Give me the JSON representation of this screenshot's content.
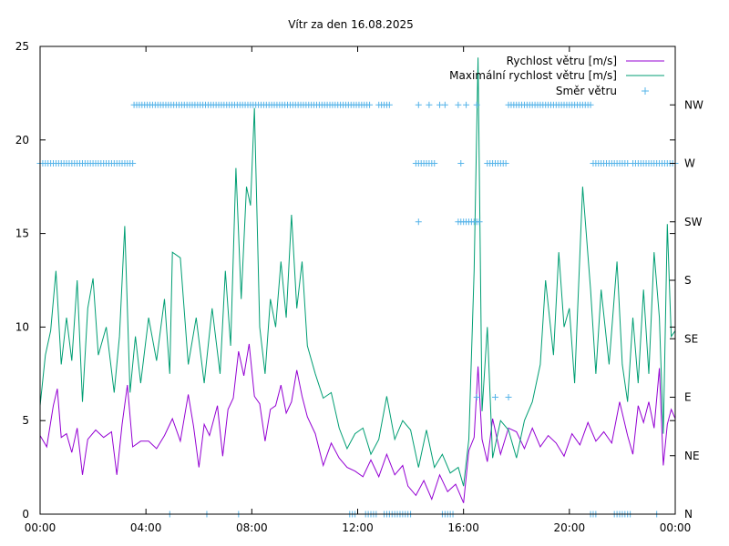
{
  "chart_data": {
    "type": "line",
    "title": "Vítr za den 16.08.2025",
    "x_ticks": [
      "00:00",
      "04:00",
      "08:00",
      "12:00",
      "16:00",
      "20:00",
      "00:00"
    ],
    "x_range_hours": [
      0,
      24
    ],
    "y_left": {
      "range": [
        0,
        25
      ],
      "ticks": [
        "0",
        "5",
        "10",
        "15",
        "20",
        "25"
      ]
    },
    "y_right": {
      "ticks": [
        "N",
        "NE",
        "E",
        "SE",
        "S",
        "SW",
        "W",
        "NW"
      ]
    },
    "grid": false,
    "legend_position": "top-right",
    "series": [
      {
        "name": "Rychlost větru [m/s]",
        "color": "#9400d3",
        "kind": "line",
        "points": [
          [
            0,
            4.2
          ],
          [
            0.25,
            3.6
          ],
          [
            0.5,
            5.8
          ],
          [
            0.65,
            6.7
          ],
          [
            0.8,
            4.1
          ],
          [
            1,
            4.3
          ],
          [
            1.2,
            3.3
          ],
          [
            1.4,
            4.6
          ],
          [
            1.6,
            2.1
          ],
          [
            1.8,
            4.0
          ],
          [
            2.1,
            4.5
          ],
          [
            2.4,
            4.1
          ],
          [
            2.7,
            4.4
          ],
          [
            2.9,
            2.1
          ],
          [
            3.1,
            4.8
          ],
          [
            3.3,
            6.9
          ],
          [
            3.5,
            3.6
          ],
          [
            3.8,
            3.9
          ],
          [
            4.1,
            3.9
          ],
          [
            4.4,
            3.5
          ],
          [
            4.7,
            4.2
          ],
          [
            5.0,
            5.1
          ],
          [
            5.3,
            3.9
          ],
          [
            5.6,
            6.4
          ],
          [
            5.8,
            4.7
          ],
          [
            6.0,
            2.5
          ],
          [
            6.2,
            4.8
          ],
          [
            6.4,
            4.2
          ],
          [
            6.7,
            5.8
          ],
          [
            6.9,
            3.1
          ],
          [
            7.1,
            5.6
          ],
          [
            7.3,
            6.2
          ],
          [
            7.5,
            8.7
          ],
          [
            7.7,
            7.4
          ],
          [
            7.9,
            9.1
          ],
          [
            8.1,
            6.3
          ],
          [
            8.3,
            5.9
          ],
          [
            8.5,
            3.9
          ],
          [
            8.7,
            5.6
          ],
          [
            8.9,
            5.8
          ],
          [
            9.1,
            6.9
          ],
          [
            9.3,
            5.4
          ],
          [
            9.5,
            6.0
          ],
          [
            9.7,
            7.7
          ],
          [
            9.9,
            6.3
          ],
          [
            10.1,
            5.2
          ],
          [
            10.4,
            4.3
          ],
          [
            10.7,
            2.6
          ],
          [
            11.0,
            3.8
          ],
          [
            11.3,
            3.0
          ],
          [
            11.6,
            2.5
          ],
          [
            11.9,
            2.3
          ],
          [
            12.2,
            2.0
          ],
          [
            12.5,
            2.9
          ],
          [
            12.8,
            2.0
          ],
          [
            13.1,
            3.2
          ],
          [
            13.4,
            2.1
          ],
          [
            13.7,
            2.6
          ],
          [
            13.9,
            1.5
          ],
          [
            14.2,
            1.0
          ],
          [
            14.5,
            1.8
          ],
          [
            14.8,
            0.8
          ],
          [
            15.1,
            2.1
          ],
          [
            15.4,
            1.2
          ],
          [
            15.7,
            1.6
          ],
          [
            16.0,
            0.6
          ],
          [
            16.2,
            3.4
          ],
          [
            16.4,
            4.1
          ],
          [
            16.55,
            7.9
          ],
          [
            16.7,
            4.0
          ],
          [
            16.9,
            2.8
          ],
          [
            17.1,
            5.1
          ],
          [
            17.4,
            3.2
          ],
          [
            17.7,
            4.6
          ],
          [
            18.0,
            4.4
          ],
          [
            18.3,
            3.5
          ],
          [
            18.6,
            4.6
          ],
          [
            18.9,
            3.6
          ],
          [
            19.2,
            4.2
          ],
          [
            19.5,
            3.8
          ],
          [
            19.8,
            3.1
          ],
          [
            20.1,
            4.3
          ],
          [
            20.4,
            3.7
          ],
          [
            20.7,
            4.9
          ],
          [
            21.0,
            3.9
          ],
          [
            21.3,
            4.4
          ],
          [
            21.6,
            3.8
          ],
          [
            21.9,
            6.0
          ],
          [
            22.2,
            4.2
          ],
          [
            22.4,
            3.2
          ],
          [
            22.6,
            5.8
          ],
          [
            22.8,
            4.9
          ],
          [
            23.0,
            6.0
          ],
          [
            23.2,
            4.6
          ],
          [
            23.4,
            7.8
          ],
          [
            23.55,
            2.6
          ],
          [
            23.7,
            4.8
          ],
          [
            23.85,
            5.6
          ],
          [
            24.0,
            5.1
          ]
        ]
      },
      {
        "name": "Maximální rychlost větru [m/s]",
        "color": "#009e73",
        "kind": "line",
        "points": [
          [
            0,
            5.8
          ],
          [
            0.2,
            8.5
          ],
          [
            0.4,
            9.8
          ],
          [
            0.6,
            13.0
          ],
          [
            0.8,
            8.0
          ],
          [
            1.0,
            10.5
          ],
          [
            1.2,
            8.2
          ],
          [
            1.4,
            12.5
          ],
          [
            1.6,
            6.0
          ],
          [
            1.8,
            11.0
          ],
          [
            2.0,
            12.6
          ],
          [
            2.2,
            8.5
          ],
          [
            2.5,
            10.0
          ],
          [
            2.8,
            6.5
          ],
          [
            3.0,
            9.5
          ],
          [
            3.2,
            15.4
          ],
          [
            3.4,
            6.5
          ],
          [
            3.6,
            9.5
          ],
          [
            3.8,
            7.0
          ],
          [
            4.1,
            10.5
          ],
          [
            4.4,
            8.2
          ],
          [
            4.7,
            11.5
          ],
          [
            4.9,
            7.5
          ],
          [
            5.0,
            14.0
          ],
          [
            5.3,
            13.7
          ],
          [
            5.6,
            8.0
          ],
          [
            5.9,
            10.5
          ],
          [
            6.2,
            7.0
          ],
          [
            6.5,
            11.0
          ],
          [
            6.8,
            7.5
          ],
          [
            7.0,
            13.0
          ],
          [
            7.2,
            9.0
          ],
          [
            7.4,
            18.5
          ],
          [
            7.6,
            11.5
          ],
          [
            7.8,
            17.5
          ],
          [
            7.95,
            16.5
          ],
          [
            8.1,
            21.7
          ],
          [
            8.3,
            10.0
          ],
          [
            8.5,
            7.5
          ],
          [
            8.7,
            11.5
          ],
          [
            8.9,
            10.0
          ],
          [
            9.1,
            13.5
          ],
          [
            9.3,
            10.5
          ],
          [
            9.5,
            16.0
          ],
          [
            9.7,
            11.0
          ],
          [
            9.9,
            13.5
          ],
          [
            10.1,
            9.0
          ],
          [
            10.4,
            7.5
          ],
          [
            10.7,
            6.2
          ],
          [
            11.0,
            6.5
          ],
          [
            11.3,
            4.6
          ],
          [
            11.6,
            3.5
          ],
          [
            11.9,
            4.3
          ],
          [
            12.2,
            4.6
          ],
          [
            12.5,
            3.2
          ],
          [
            12.8,
            4.0
          ],
          [
            13.1,
            6.3
          ],
          [
            13.4,
            4.0
          ],
          [
            13.7,
            5.0
          ],
          [
            14.0,
            4.5
          ],
          [
            14.3,
            2.5
          ],
          [
            14.6,
            4.5
          ],
          [
            14.9,
            2.5
          ],
          [
            15.2,
            3.2
          ],
          [
            15.5,
            2.2
          ],
          [
            15.8,
            2.5
          ],
          [
            16.0,
            1.5
          ],
          [
            16.2,
            4.0
          ],
          [
            16.4,
            13.0
          ],
          [
            16.55,
            24.4
          ],
          [
            16.7,
            5.5
          ],
          [
            16.9,
            10.0
          ],
          [
            17.1,
            3.0
          ],
          [
            17.4,
            5.0
          ],
          [
            17.7,
            4.5
          ],
          [
            18.0,
            3.0
          ],
          [
            18.3,
            5.0
          ],
          [
            18.6,
            6.0
          ],
          [
            18.9,
            8.0
          ],
          [
            19.1,
            12.5
          ],
          [
            19.4,
            8.5
          ],
          [
            19.6,
            14.0
          ],
          [
            19.8,
            10.0
          ],
          [
            20.0,
            11.0
          ],
          [
            20.2,
            7.0
          ],
          [
            20.5,
            17.5
          ],
          [
            20.8,
            12.0
          ],
          [
            21.0,
            7.5
          ],
          [
            21.2,
            12.0
          ],
          [
            21.5,
            8.0
          ],
          [
            21.8,
            13.5
          ],
          [
            22.0,
            8.0
          ],
          [
            22.2,
            6.0
          ],
          [
            22.4,
            10.5
          ],
          [
            22.6,
            7.0
          ],
          [
            22.8,
            12.0
          ],
          [
            23.0,
            7.5
          ],
          [
            23.2,
            14.0
          ],
          [
            23.4,
            10.5
          ],
          [
            23.55,
            4.3
          ],
          [
            23.7,
            15.5
          ],
          [
            23.85,
            9.5
          ],
          [
            24.0,
            9.8
          ]
        ]
      },
      {
        "name": "Směr větru",
        "color": "#56b4e9",
        "kind": "points",
        "runs": [
          {
            "dir": "W",
            "from": 0.0,
            "to": 3.5,
            "step": 0.1
          },
          {
            "dir": "NW",
            "from": 3.55,
            "to": 12.5,
            "step": 0.1
          },
          {
            "dir": "NW",
            "from": 12.8,
            "to": 13.2,
            "step": 0.1
          },
          {
            "dir": "W",
            "from": 14.2,
            "to": 14.9,
            "step": 0.1
          },
          {
            "dir": "W",
            "from": 16.9,
            "to": 17.6,
            "step": 0.1
          },
          {
            "dir": "NW",
            "from": 17.7,
            "to": 20.8,
            "step": 0.1
          },
          {
            "dir": "W",
            "from": 20.9,
            "to": 22.2,
            "step": 0.1
          },
          {
            "dir": "W",
            "from": 22.4,
            "to": 24.0,
            "step": 0.1
          },
          {
            "dir": "N",
            "from": 11.7,
            "to": 11.9,
            "step": 0.1
          },
          {
            "dir": "N",
            "from": 12.3,
            "to": 12.7,
            "step": 0.1
          },
          {
            "dir": "N",
            "from": 13.0,
            "to": 14.0,
            "step": 0.1
          },
          {
            "dir": "N",
            "from": 15.2,
            "to": 15.6,
            "step": 0.1
          },
          {
            "dir": "N",
            "from": 20.8,
            "to": 21.0,
            "step": 0.1
          },
          {
            "dir": "N",
            "from": 21.7,
            "to": 22.3,
            "step": 0.1
          },
          {
            "dir": "SW",
            "from": 15.8,
            "to": 16.4,
            "step": 0.1
          }
        ],
        "extra": [
          {
            "t": 14.3,
            "dir": "SW"
          },
          {
            "t": 14.3,
            "dir": "NW"
          },
          {
            "t": 14.7,
            "dir": "NW"
          },
          {
            "t": 15.1,
            "dir": "NW"
          },
          {
            "t": 15.3,
            "dir": "NW"
          },
          {
            "t": 15.8,
            "dir": "NW"
          },
          {
            "t": 16.1,
            "dir": "NW"
          },
          {
            "t": 16.5,
            "dir": "NW"
          },
          {
            "t": 15.9,
            "dir": "W"
          },
          {
            "t": 16.5,
            "dir": "SW"
          },
          {
            "t": 16.6,
            "dir": "SW"
          },
          {
            "t": 17.2,
            "dir": "E"
          },
          {
            "t": 17.7,
            "dir": "E"
          },
          {
            "t": 4.9,
            "dir": "N"
          },
          {
            "t": 6.3,
            "dir": "N"
          },
          {
            "t": 7.5,
            "dir": "N"
          },
          {
            "t": 23.3,
            "dir": "N"
          },
          {
            "t": 16.5,
            "dir": "E"
          }
        ]
      }
    ]
  }
}
